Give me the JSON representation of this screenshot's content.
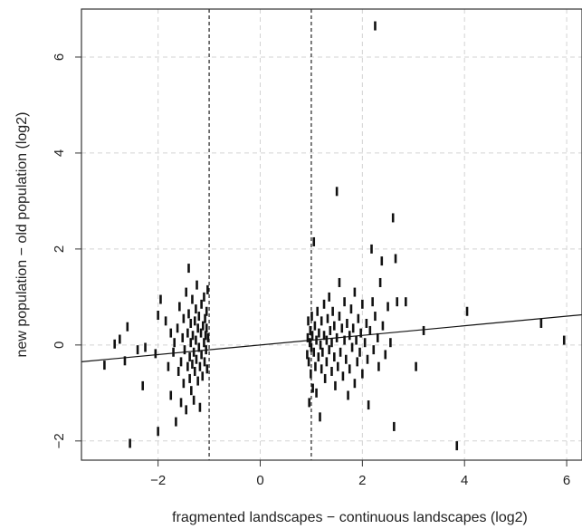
{
  "chart_data": {
    "type": "scatter",
    "title": "",
    "xlabel": "fragmented landscapes − continuous landscapes  (log2)",
    "ylabel": "new population − old population  (log2)",
    "xlim": [
      -3.5,
      6.3
    ],
    "ylim": [
      -2.4,
      7.0
    ],
    "x_ticks": [
      -2,
      0,
      2,
      4,
      6
    ],
    "x_tick_labels": [
      "−2",
      "0",
      "2",
      "4",
      "6"
    ],
    "y_ticks": [
      -2,
      0,
      2,
      4,
      6
    ],
    "y_tick_labels": [
      "−2",
      "0",
      "2",
      "4",
      "6"
    ],
    "grid": true,
    "vlines": [
      -1,
      1
    ],
    "regression_line": {
      "slope": 0.1,
      "intercept": 0.0
    },
    "series": [
      {
        "points": [
          [
            -3.05,
            -0.42
          ],
          [
            -2.85,
            0.02
          ],
          [
            -2.75,
            0.12
          ],
          [
            -2.65,
            -0.33
          ],
          [
            -2.6,
            0.38
          ],
          [
            -2.55,
            -2.05
          ],
          [
            -2.4,
            -0.1
          ],
          [
            -2.3,
            -0.85
          ],
          [
            -2.25,
            -0.05
          ],
          [
            -2.05,
            -0.18
          ],
          [
            -2.0,
            0.62
          ],
          [
            -2.0,
            -1.8
          ],
          [
            -1.95,
            0.95
          ],
          [
            -1.85,
            0.5
          ],
          [
            -1.75,
            0.25
          ],
          [
            -1.8,
            -0.45
          ],
          [
            -1.75,
            -1.05
          ],
          [
            -1.7,
            -0.15
          ],
          [
            -1.68,
            0.05
          ],
          [
            -1.65,
            -1.6
          ],
          [
            -1.62,
            0.35
          ],
          [
            -1.6,
            -0.55
          ],
          [
            -1.58,
            0.8
          ],
          [
            -1.55,
            -0.35
          ],
          [
            -1.55,
            -1.2
          ],
          [
            -1.52,
            0.15
          ],
          [
            -1.5,
            0.55
          ],
          [
            -1.5,
            -0.8
          ],
          [
            -1.48,
            -0.1
          ],
          [
            -1.45,
            1.1
          ],
          [
            -1.45,
            -1.35
          ],
          [
            -1.42,
            0.25
          ],
          [
            -1.42,
            -0.45
          ],
          [
            -1.4,
            0.65
          ],
          [
            -1.4,
            1.6
          ],
          [
            -1.38,
            -0.25
          ],
          [
            -1.38,
            -0.7
          ],
          [
            -1.36,
            0.05
          ],
          [
            -1.36,
            0.45
          ],
          [
            -1.35,
            -0.95
          ],
          [
            -1.33,
            0.95
          ],
          [
            -1.33,
            -0.4
          ],
          [
            -1.32,
            0.2
          ],
          [
            -1.3,
            -0.15
          ],
          [
            -1.3,
            -1.15
          ],
          [
            -1.28,
            0.5
          ],
          [
            -1.28,
            -0.55
          ],
          [
            -1.26,
            0.75
          ],
          [
            -1.26,
            0.1
          ],
          [
            -1.25,
            -0.3
          ],
          [
            -1.24,
            1.25
          ],
          [
            -1.22,
            -0.75
          ],
          [
            -1.22,
            0.35
          ],
          [
            -1.2,
            -0.05
          ],
          [
            -1.2,
            0.6
          ],
          [
            -1.18,
            -0.45
          ],
          [
            -1.18,
            -1.3
          ],
          [
            -1.16,
            0.25
          ],
          [
            -1.15,
            0.85
          ],
          [
            -1.15,
            -0.2
          ],
          [
            -1.13,
            -0.65
          ],
          [
            -1.12,
            0.4
          ],
          [
            -1.1,
            0.05
          ],
          [
            -1.1,
            1.0
          ],
          [
            -1.09,
            -0.35
          ],
          [
            -1.08,
            0.55
          ],
          [
            -1.07,
            0.2
          ],
          [
            -1.06,
            -0.1
          ],
          [
            -1.05,
            0.35
          ],
          [
            -1.05,
            0.7
          ],
          [
            -1.04,
            -0.5
          ],
          [
            -1.03,
            1.15
          ],
          [
            -1.02,
            0.15
          ],
          [
            0.92,
            -0.2
          ],
          [
            0.93,
            0.15
          ],
          [
            0.94,
            0.5
          ],
          [
            0.95,
            -0.35
          ],
          [
            0.96,
            -1.2
          ],
          [
            0.97,
            0.05
          ],
          [
            0.98,
            0.3
          ],
          [
            0.99,
            -0.6
          ],
          [
            1.0,
            -0.05
          ],
          [
            1.01,
            0.6
          ],
          [
            1.02,
            0.2
          ],
          [
            1.03,
            -0.9
          ],
          [
            1.05,
            2.15
          ],
          [
            1.05,
            -0.15
          ],
          [
            1.07,
            0.4
          ],
          [
            1.08,
            -0.45
          ],
          [
            1.1,
            0.1
          ],
          [
            1.1,
            -1.0
          ],
          [
            1.12,
            0.7
          ],
          [
            1.14,
            -0.25
          ],
          [
            1.15,
            0.25
          ],
          [
            1.17,
            -1.5
          ],
          [
            1.18,
            0.0
          ],
          [
            1.2,
            0.5
          ],
          [
            1.2,
            -0.5
          ],
          [
            1.22,
            -0.15
          ],
          [
            1.25,
            0.85
          ],
          [
            1.25,
            0.2
          ],
          [
            1.27,
            -0.7
          ],
          [
            1.3,
            0.1
          ],
          [
            1.3,
            -0.35
          ],
          [
            1.32,
            0.55
          ],
          [
            1.35,
            -0.1
          ],
          [
            1.35,
            1.0
          ],
          [
            1.37,
            0.3
          ],
          [
            1.4,
            -0.55
          ],
          [
            1.4,
            0.05
          ],
          [
            1.42,
            0.7
          ],
          [
            1.45,
            -0.25
          ],
          [
            1.45,
            0.4
          ],
          [
            1.47,
            -0.85
          ],
          [
            1.5,
            3.2
          ],
          [
            1.5,
            0.15
          ],
          [
            1.52,
            -0.45
          ],
          [
            1.55,
            0.6
          ],
          [
            1.55,
            1.3
          ],
          [
            1.57,
            -0.15
          ],
          [
            1.6,
            0.35
          ],
          [
            1.62,
            -0.65
          ],
          [
            1.65,
            0.1
          ],
          [
            1.65,
            0.9
          ],
          [
            1.68,
            -0.3
          ],
          [
            1.7,
            0.45
          ],
          [
            1.72,
            -1.05
          ],
          [
            1.75,
            0.2
          ],
          [
            1.75,
            -0.5
          ],
          [
            1.78,
            0.75
          ],
          [
            1.8,
            -0.05
          ],
          [
            1.82,
            0.35
          ],
          [
            1.85,
            -0.8
          ],
          [
            1.85,
            1.1
          ],
          [
            1.88,
            0.1
          ],
          [
            1.9,
            -0.35
          ],
          [
            1.92,
            0.55
          ],
          [
            1.95,
            -0.15
          ],
          [
            1.97,
            0.25
          ],
          [
            2.0,
            -0.6
          ],
          [
            2.0,
            0.85
          ],
          [
            2.05,
            0.05
          ],
          [
            2.08,
            0.45
          ],
          [
            2.1,
            -0.3
          ],
          [
            2.12,
            -1.25
          ],
          [
            2.15,
            0.3
          ],
          [
            2.18,
            2.0
          ],
          [
            2.2,
            0.9
          ],
          [
            2.22,
            -0.1
          ],
          [
            2.25,
            6.65
          ],
          [
            2.25,
            0.6
          ],
          [
            2.3,
            0.15
          ],
          [
            2.32,
            -0.45
          ],
          [
            2.35,
            1.3
          ],
          [
            2.38,
            1.75
          ],
          [
            2.4,
            0.4
          ],
          [
            2.45,
            -0.2
          ],
          [
            2.5,
            0.8
          ],
          [
            2.55,
            0.05
          ],
          [
            2.6,
            2.65
          ],
          [
            2.62,
            -1.7
          ],
          [
            2.65,
            1.8
          ],
          [
            2.68,
            0.9
          ],
          [
            2.85,
            0.9
          ],
          [
            3.05,
            -0.45
          ],
          [
            3.2,
            0.3
          ],
          [
            3.85,
            -2.1
          ],
          [
            4.05,
            0.7
          ],
          [
            5.5,
            0.45
          ],
          [
            5.95,
            0.1
          ]
        ]
      }
    ]
  }
}
